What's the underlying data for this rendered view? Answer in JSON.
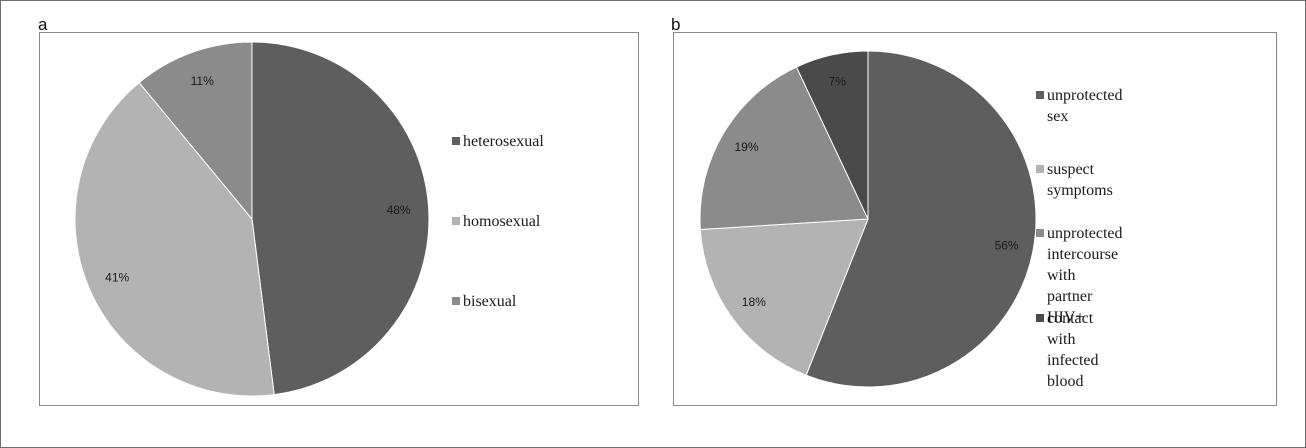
{
  "chart_data": [
    {
      "panel": "a",
      "type": "pie",
      "slices": [
        {
          "label": "heterosexual",
          "value": 48,
          "display": "48%",
          "color": "#5e5e5e"
        },
        {
          "label": "homosexual",
          "value": 41,
          "display": "41%",
          "color": "#b3b3b3"
        },
        {
          "label": "bisexual",
          "value": 11,
          "display": "11%",
          "color": "#8b8b8b"
        }
      ],
      "legend_position": "right"
    },
    {
      "panel": "b",
      "type": "pie",
      "slices": [
        {
          "label": "unprotected sex",
          "value": 56,
          "display": "56%",
          "color": "#5e5e5e"
        },
        {
          "label": "suspect symptoms",
          "value": 18,
          "display": "18%",
          "color": "#b3b3b3"
        },
        {
          "label": "unprotected intercourse\nwith partner HIV+",
          "value": 19,
          "display": "19%",
          "color": "#8b8b8b"
        },
        {
          "label": "contact with infected\nblood",
          "value": 7,
          "display": "7%",
          "color": "#4a4a4a"
        }
      ],
      "legend_position": "right"
    }
  ]
}
